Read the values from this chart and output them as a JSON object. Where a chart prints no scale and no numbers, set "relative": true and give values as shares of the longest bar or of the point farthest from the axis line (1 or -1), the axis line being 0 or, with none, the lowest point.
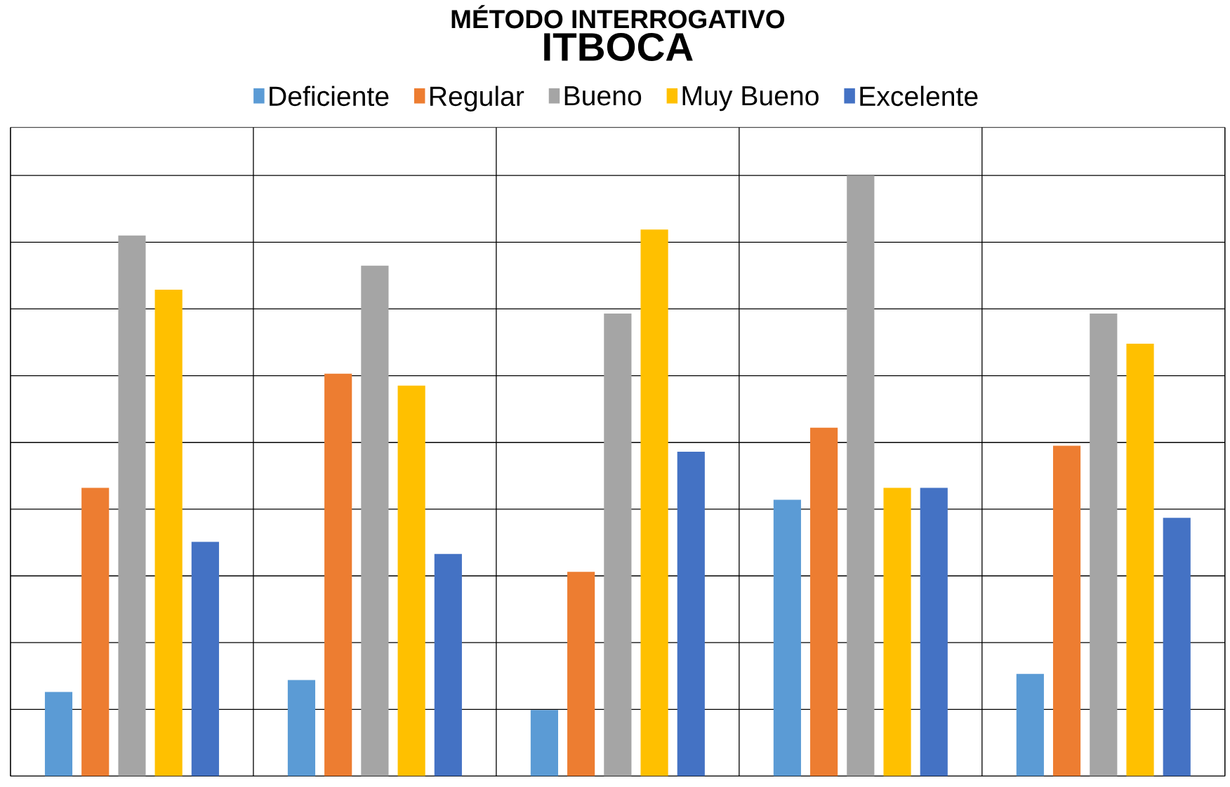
{
  "chart_data": {
    "type": "bar",
    "title": "MÉTODO INTERROGATIVO",
    "subtitle": "ITBOCA",
    "relative": true,
    "categories": [
      null,
      null,
      null,
      null,
      null
    ],
    "grid": true,
    "legend": "top",
    "series": [
      {
        "name": "Deficiente",
        "color": "#5b9bd5",
        "values": [
          0.14,
          0.16,
          0.11,
          0.46,
          0.17
        ]
      },
      {
        "name": "Regular",
        "color": "#ed7d31",
        "values": [
          0.48,
          0.67,
          0.34,
          0.58,
          0.55
        ]
      },
      {
        "name": "Bueno",
        "color": "#a5a5a5",
        "values": [
          0.9,
          0.85,
          0.77,
          1,
          0.77
        ]
      },
      {
        "name": "Muy Bueno",
        "color": "#ffc000",
        "values": [
          0.81,
          0.65,
          0.91,
          0.48,
          0.72
        ]
      },
      {
        "name": "Excelente",
        "color": "#4472c4",
        "values": [
          0.39,
          0.37,
          0.54,
          0.48,
          0.43
        ]
      }
    ]
  }
}
